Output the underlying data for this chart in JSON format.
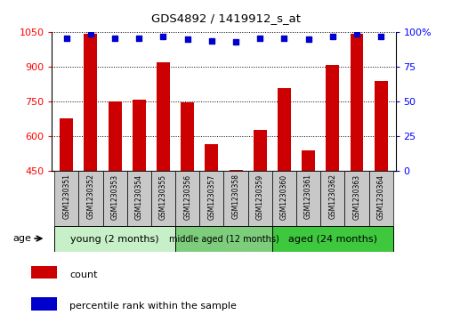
{
  "title": "GDS4892 / 1419912_s_at",
  "samples": [
    "GSM1230351",
    "GSM1230352",
    "GSM1230353",
    "GSM1230354",
    "GSM1230355",
    "GSM1230356",
    "GSM1230357",
    "GSM1230358",
    "GSM1230359",
    "GSM1230360",
    "GSM1230361",
    "GSM1230362",
    "GSM1230363",
    "GSM1230364"
  ],
  "counts": [
    680,
    1045,
    750,
    760,
    920,
    748,
    565,
    455,
    630,
    810,
    540,
    910,
    1045,
    840
  ],
  "percentiles": [
    96,
    99,
    96,
    96,
    97,
    95,
    94,
    93,
    96,
    96,
    95,
    97,
    99,
    97
  ],
  "ylim_left": [
    450,
    1050
  ],
  "ylim_right": [
    0,
    100
  ],
  "yticks_left": [
    450,
    600,
    750,
    900,
    1050
  ],
  "yticks_right": [
    0,
    25,
    50,
    75,
    100
  ],
  "bar_color": "#cc0000",
  "dot_color": "#0000cc",
  "groups": [
    {
      "label": "young (2 months)",
      "start": 0,
      "end": 4,
      "color": "#c8f0c8"
    },
    {
      "label": "middle aged (12 months)",
      "start": 5,
      "end": 8,
      "color": "#7dcd7d"
    },
    {
      "label": "aged (24 months)",
      "start": 9,
      "end": 13,
      "color": "#3ec83e"
    }
  ],
  "age_label": "age",
  "legend_count_label": "count",
  "legend_percentile_label": "percentile rank within the sample",
  "grid_color": "#000000",
  "label_bg_color": "#c8c8c8",
  "plot_bg": "#ffffff"
}
